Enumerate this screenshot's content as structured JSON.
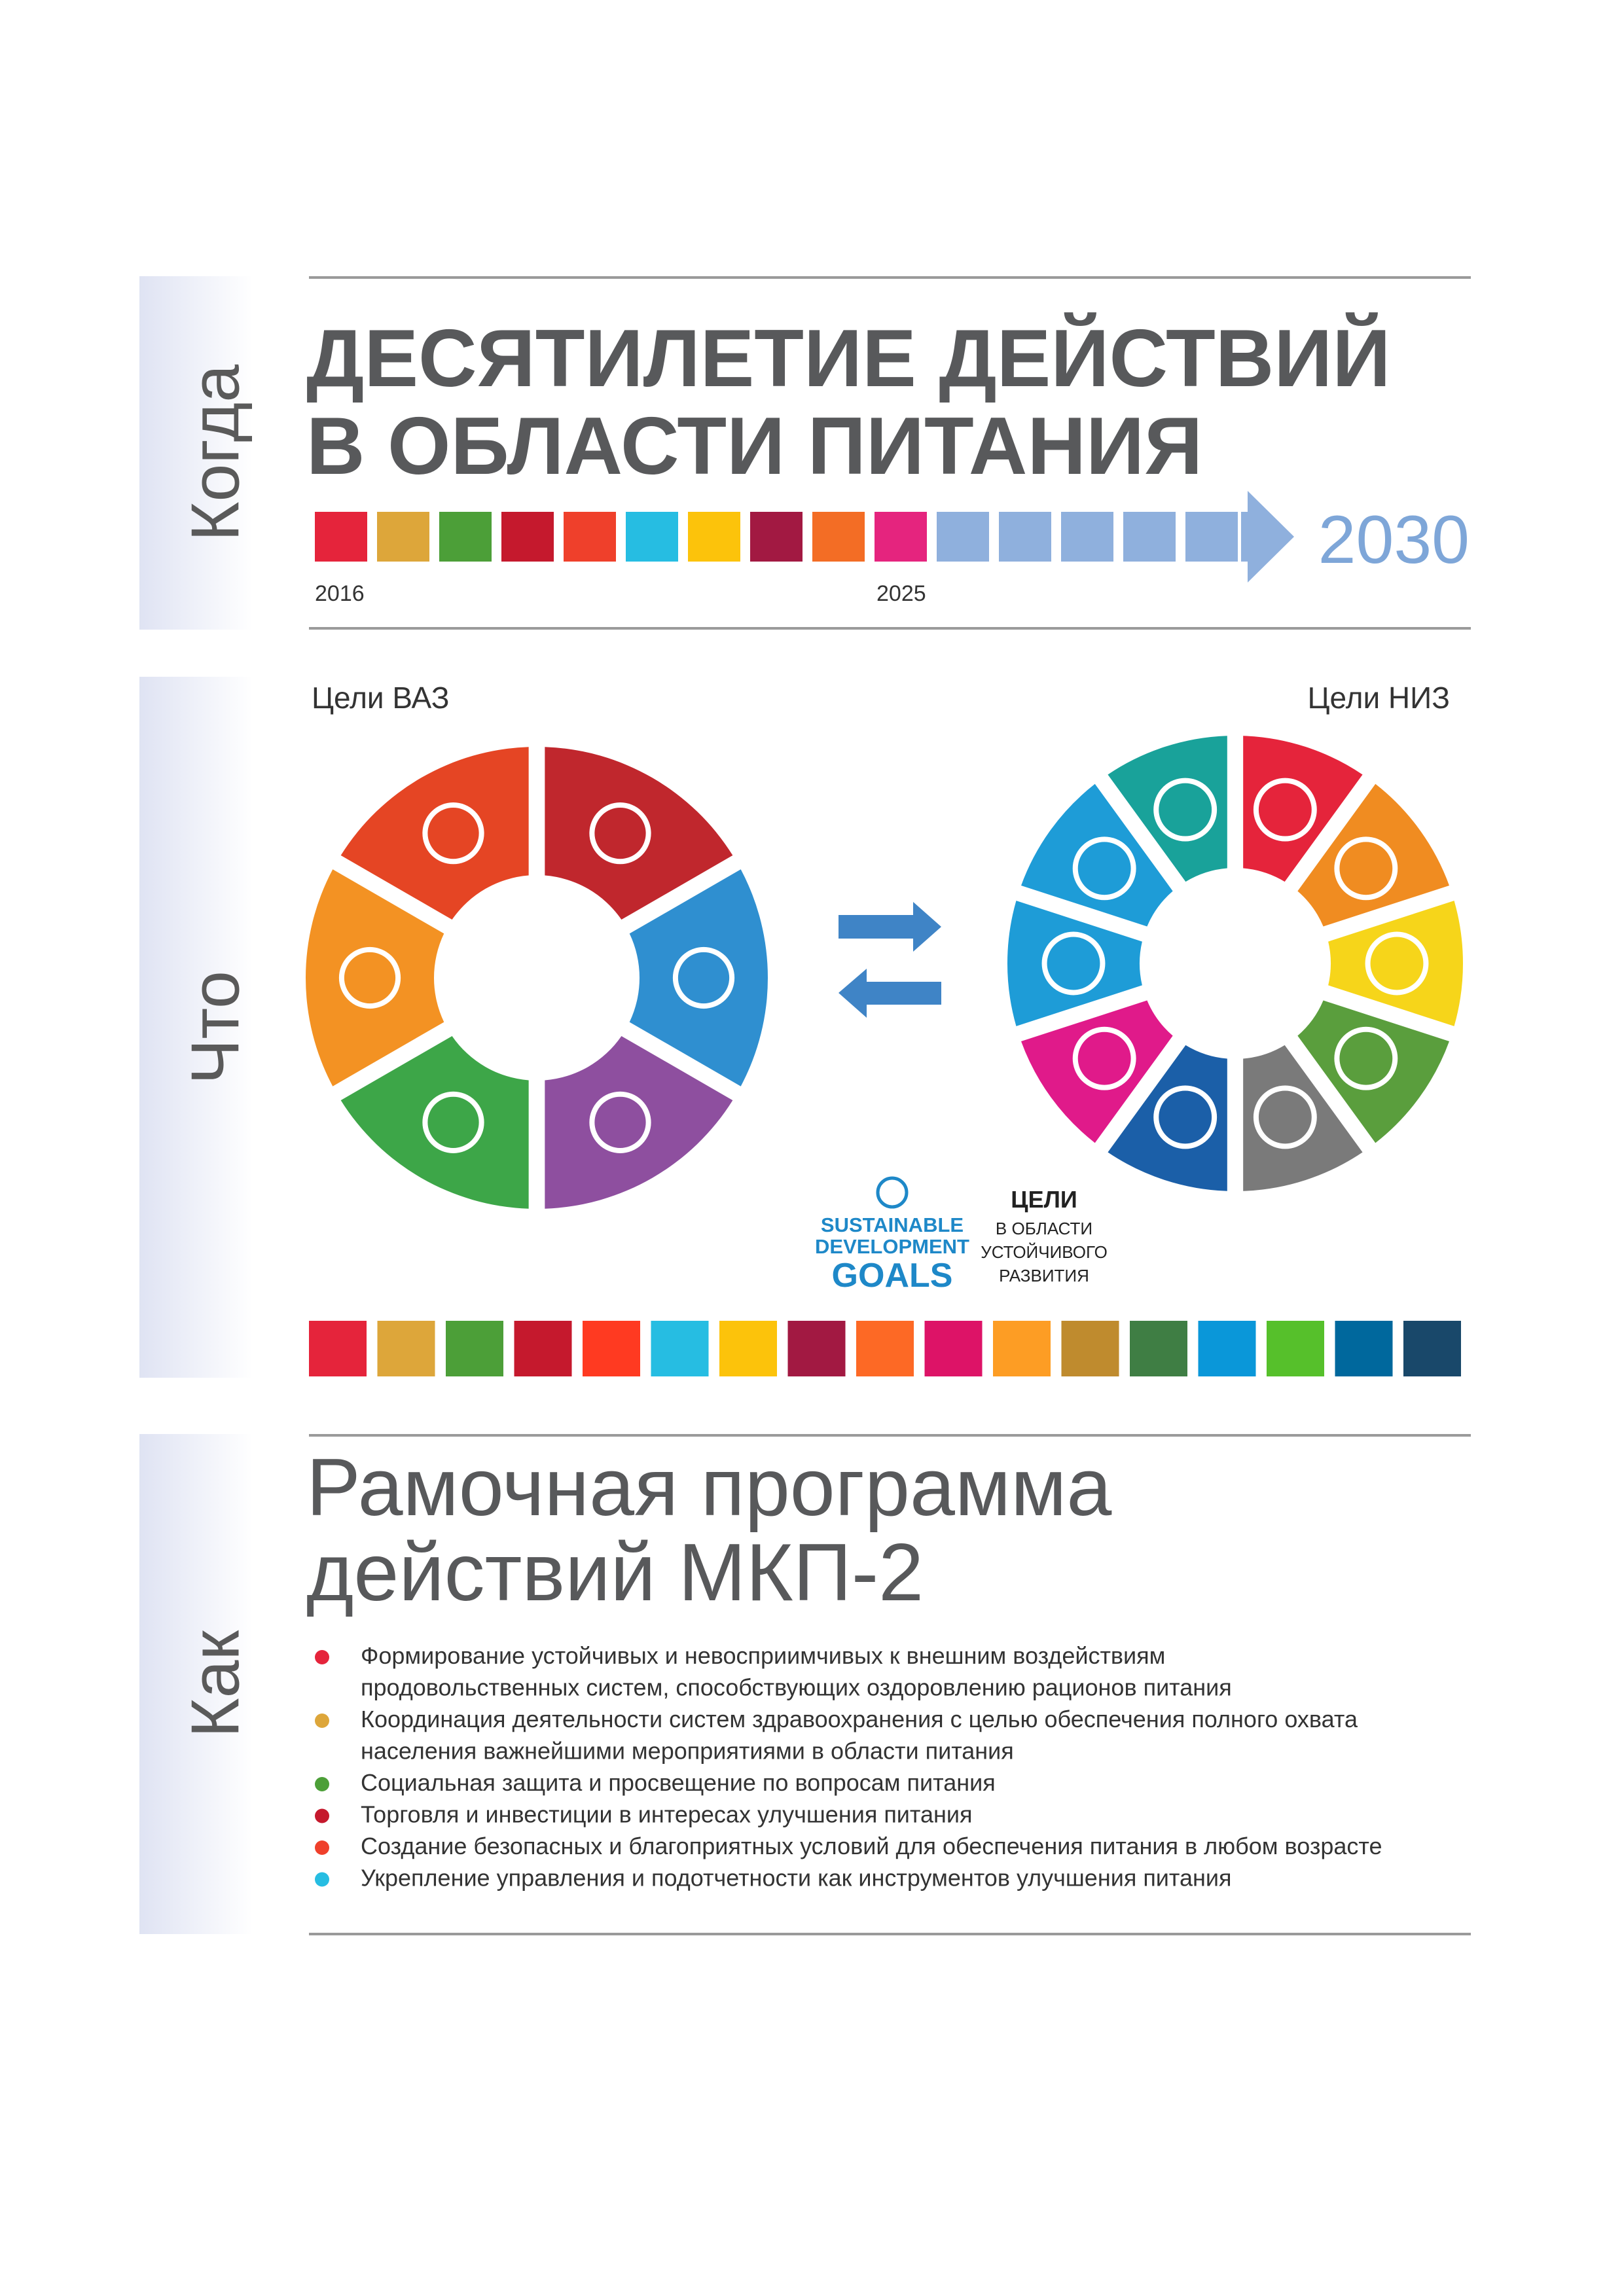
{
  "when": {
    "label": "Когда",
    "title": [
      "ДЕСЯТИЛЕТИЕ ДЕЙСТВИЙ",
      "В ОБЛАСТИ ПИТАНИЯ"
    ],
    "start_year": "2016",
    "mid_year": "2025",
    "end_year": "2030"
  },
  "what": {
    "label": "Что",
    "left_title": "Цели ВАЗ",
    "right_title": "Цели НИЗ",
    "sdg_logo": [
      "SUSTAINABLE",
      "DEVELOPMENT",
      "GOALS"
    ],
    "sdg_caption": [
      "ЦЕЛИ",
      "В ОБЛАСТИ",
      "УСТОЙЧИВОГО",
      "РАЗВИТИЯ"
    ]
  },
  "how": {
    "label": "Как",
    "title": [
      "Рамочная программа",
      "действий МКП-2"
    ],
    "items": [
      {
        "lines": [
          "Формирование устойчивых и невосприимчивых к внешним воздействиям",
          "продовольственных систем, способствующих оздоровлению рационов питания"
        ]
      },
      {
        "lines": [
          "Координация деятельности систем здравоохранения с целью обеспечения полного охвата",
          "населения важнейшими мероприятиями в области питания"
        ]
      },
      {
        "lines": [
          "Социальная защита и просвещение по вопросам питания"
        ]
      },
      {
        "lines": [
          "Торговля и инвестиции в интересах улучшения питания"
        ]
      },
      {
        "lines": [
          "Создание безопасных и благоприятных условий для обеспечения питания в любом возрасте"
        ]
      },
      {
        "lines": [
          "Укрепление управления и подотчетности как инструментов улучшения питания"
        ]
      }
    ]
  }
}
